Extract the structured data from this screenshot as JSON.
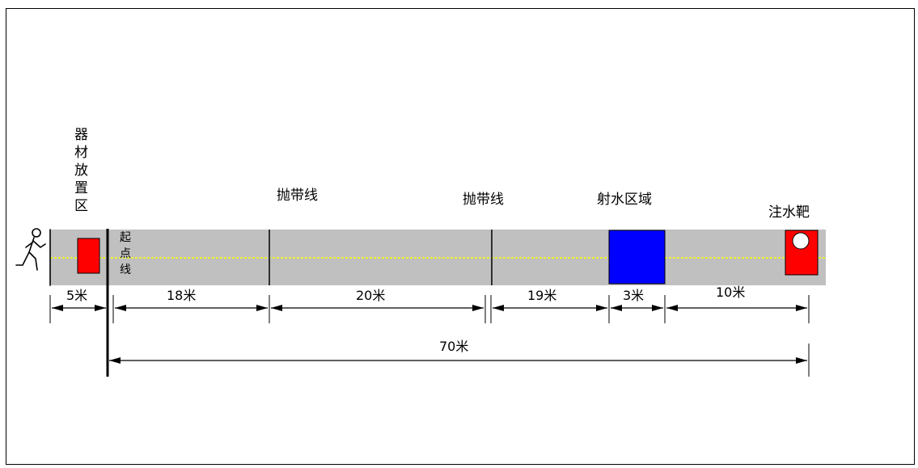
{
  "labels": {
    "equipment_zone": "器材放置区",
    "start_line": "起点线",
    "belt_line_1": "抛带线",
    "belt_line_2": "抛带线",
    "spray_zone": "射水区域",
    "target": "注水靶"
  },
  "distances": {
    "d1": "5米",
    "d2": "18米",
    "d3": "20米",
    "d4": "19米",
    "d5": "3米",
    "d6": "10米",
    "total": "70米"
  },
  "colors": {
    "track": "#c0c0c0",
    "center_line": "#ffff00",
    "equipment_box": "#ff0000",
    "spray_zone": "#0000ff",
    "target": "#ff0000"
  },
  "icons": {
    "runner": "running-person-icon"
  }
}
